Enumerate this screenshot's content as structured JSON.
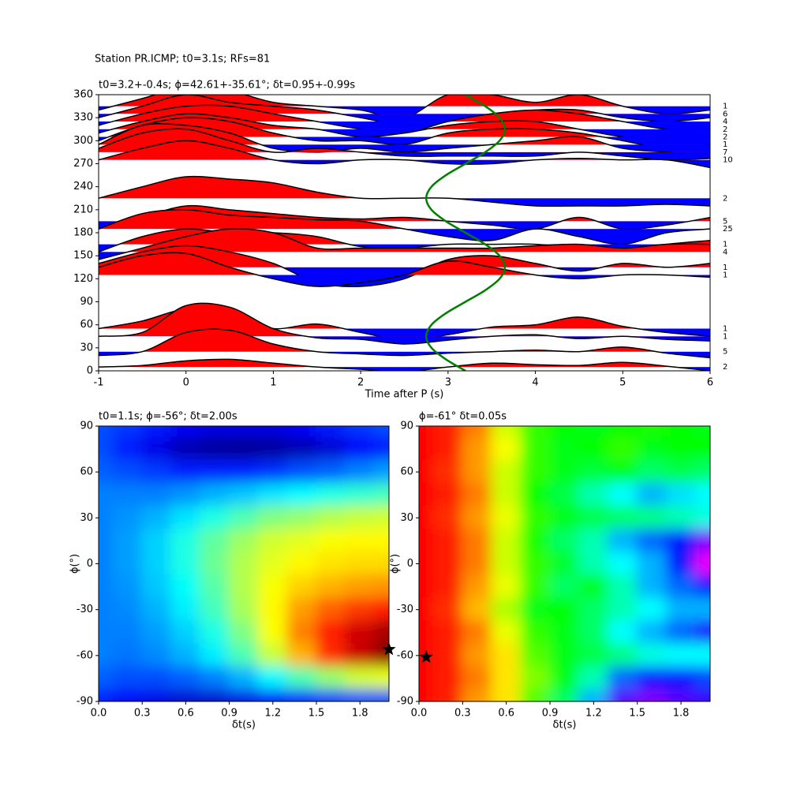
{
  "chart_data": [
    {
      "type": "wiggle",
      "suptitle": "Station PR.ICMP; t0=3.1s; RFs=81",
      "title": "t0=3.2+-0.4s; ϕ=42.61+-35.61°; δt=0.95+-0.99s",
      "xlabel": "Time after P (s)",
      "xlim": [
        -1,
        6
      ],
      "xticks": [
        -1,
        0,
        1,
        2,
        3,
        4,
        5,
        6
      ],
      "ylim": [
        0,
        360
      ],
      "yticks": [
        0,
        30,
        60,
        90,
        120,
        150,
        180,
        210,
        240,
        270,
        300,
        330,
        360
      ],
      "positive_color": "#ff0000",
      "negative_color": "#0000ff",
      "x": [
        -1,
        -0.5,
        0,
        0.5,
        1,
        1.5,
        2,
        2.5,
        3,
        3.5,
        4,
        4.5,
        5,
        5.5,
        6
      ],
      "traces": [
        {
          "baz": 345,
          "count": 1,
          "values": [
            -5,
            10,
            25,
            20,
            5,
            0,
            -5,
            -15,
            15,
            15,
            5,
            15,
            0,
            -10,
            -5
          ]
        },
        {
          "baz": 335,
          "count": 6,
          "values": [
            -5,
            10,
            25,
            15,
            10,
            5,
            -5,
            -15,
            -10,
            0,
            5,
            5,
            -5,
            -10,
            -5
          ]
        },
        {
          "baz": 325,
          "count": 4,
          "values": [
            -5,
            10,
            20,
            20,
            10,
            0,
            -10,
            -15,
            0,
            10,
            15,
            10,
            0,
            -10,
            -10
          ]
        },
        {
          "baz": 315,
          "count": 2,
          "values": [
            -5,
            10,
            20,
            15,
            5,
            0,
            -10,
            -5,
            5,
            10,
            10,
            0,
            -10,
            -15,
            -10
          ]
        },
        {
          "baz": 305,
          "count": 2,
          "values": [
            -5,
            15,
            25,
            20,
            5,
            -5,
            -5,
            -10,
            5,
            10,
            10,
            5,
            -5,
            -15,
            -10
          ]
        },
        {
          "baz": 295,
          "count": 1,
          "values": [
            0,
            25,
            25,
            15,
            -5,
            -10,
            -5,
            -10,
            -5,
            0,
            5,
            10,
            -5,
            -10,
            -15
          ]
        },
        {
          "baz": 285,
          "count": 7,
          "values": [
            5,
            25,
            30,
            15,
            0,
            5,
            0,
            -5,
            -5,
            -5,
            -5,
            0,
            -5,
            -10,
            -8
          ]
        },
        {
          "baz": 275,
          "count": 10,
          "values": [
            0,
            15,
            25,
            15,
            0,
            -5,
            0,
            0,
            -5,
            -5,
            0,
            2,
            0,
            0,
            -10
          ]
        },
        {
          "baz": 225,
          "count": 2,
          "values": [
            0,
            15,
            28,
            25,
            20,
            8,
            0,
            0,
            0,
            -5,
            -10,
            -10,
            -10,
            -8,
            -10
          ]
        },
        {
          "baz": 195,
          "count": 5,
          "values": [
            -10,
            5,
            20,
            15,
            10,
            5,
            3,
            5,
            0,
            -5,
            -10,
            5,
            -10,
            -5,
            5
          ]
        },
        {
          "baz": 185,
          "count": 25,
          "values": [
            0,
            20,
            25,
            18,
            15,
            12,
            10,
            0,
            -10,
            -15,
            0,
            -10,
            -20,
            -5,
            0
          ]
        },
        {
          "baz": 165,
          "count": 1,
          "values": [
            -10,
            10,
            20,
            15,
            15,
            10,
            -3,
            -5,
            0,
            0,
            0,
            -5,
            -8,
            0,
            5
          ]
        },
        {
          "baz": 155,
          "count": 4,
          "values": [
            -10,
            5,
            20,
            30,
            25,
            5,
            5,
            5,
            5,
            5,
            8,
            10,
            5,
            10,
            10
          ]
        },
        {
          "baz": 135,
          "count": 1,
          "values": [
            5,
            20,
            28,
            20,
            5,
            -20,
            -25,
            -15,
            10,
            15,
            5,
            -5,
            5,
            0,
            5
          ]
        },
        {
          "baz": 125,
          "count": 1,
          "values": [
            10,
            25,
            28,
            10,
            -5,
            -15,
            -10,
            0,
            18,
            10,
            0,
            -5,
            0,
            0,
            -3
          ]
        },
        {
          "baz": 55,
          "count": 1,
          "values": [
            0,
            10,
            25,
            15,
            0,
            6,
            -5,
            -15,
            -8,
            2,
            5,
            15,
            3,
            -5,
            -10
          ]
        },
        {
          "baz": 45,
          "count": 1,
          "values": [
            0,
            5,
            40,
            38,
            10,
            -2,
            -4,
            -10,
            -5,
            0,
            2,
            -3,
            0,
            -4,
            -6
          ]
        },
        {
          "baz": 25,
          "count": 5,
          "values": [
            -5,
            0,
            25,
            28,
            10,
            0,
            -3,
            -5,
            -2,
            0,
            2,
            0,
            6,
            -2,
            -8
          ]
        },
        {
          "baz": 5,
          "count": 2,
          "values": [
            0,
            2,
            8,
            10,
            5,
            0,
            -3,
            -6,
            0,
            5,
            3,
            2,
            6,
            1,
            -5
          ]
        }
      ],
      "curve": {
        "color": "#008000",
        "y": [
          0,
          15,
          30,
          45,
          60,
          75,
          90,
          105,
          120,
          135,
          150,
          165,
          180,
          195,
          210,
          225,
          240,
          255,
          270,
          285,
          300,
          315,
          330,
          345,
          360
        ],
        "x": [
          3.2,
          2.975,
          2.81,
          2.75,
          2.81,
          2.975,
          3.2,
          3.425,
          3.59,
          3.65,
          3.59,
          3.425,
          3.2,
          2.975,
          2.81,
          2.75,
          2.81,
          2.975,
          3.2,
          3.425,
          3.59,
          3.65,
          3.59,
          3.425,
          3.2
        ]
      }
    },
    {
      "type": "heatmap",
      "colormap": "jet",
      "title": "t0=1.1s; ϕ=-56°; δt=2.00s",
      "xlabel": "δt(s)",
      "ylabel": "ϕ(°)",
      "xlim": [
        0,
        2
      ],
      "xticks": [
        {
          "value": 0,
          "label": "0.0"
        },
        0.3,
        0.6,
        0.9,
        1.2,
        1.5,
        1.8
      ],
      "ylim": [
        -90,
        90
      ],
      "yticks": [
        -90,
        -60,
        -30,
        0,
        30,
        60,
        90
      ],
      "x": [
        0,
        0.2,
        0.4,
        0.6,
        0.8,
        1,
        1.2,
        1.4,
        1.6,
        1.8,
        2
      ],
      "y": [
        90,
        75,
        60,
        45,
        30,
        15,
        0,
        -15,
        -30,
        -45,
        -60,
        -75,
        -90
      ],
      "values": [
        [
          0.2,
          0.18,
          0.15,
          0.12,
          0.1,
          0.1,
          0.1,
          0.12,
          0.15,
          0.18,
          0.2
        ],
        [
          0.2,
          0.15,
          0.1,
          0.05,
          0.03,
          0.02,
          0.03,
          0.05,
          0.08,
          0.12,
          0.15
        ],
        [
          0.22,
          0.2,
          0.18,
          0.15,
          0.15,
          0.15,
          0.17,
          0.2,
          0.22,
          0.25,
          0.28
        ],
        [
          0.25,
          0.25,
          0.25,
          0.27,
          0.3,
          0.32,
          0.35,
          0.37,
          0.4,
          0.42,
          0.44
        ],
        [
          0.25,
          0.27,
          0.3,
          0.35,
          0.4,
          0.45,
          0.5,
          0.52,
          0.55,
          0.57,
          0.58
        ],
        [
          0.25,
          0.28,
          0.33,
          0.4,
          0.47,
          0.53,
          0.58,
          0.6,
          0.62,
          0.63,
          0.63
        ],
        [
          0.25,
          0.28,
          0.33,
          0.4,
          0.48,
          0.55,
          0.6,
          0.63,
          0.65,
          0.66,
          0.66
        ],
        [
          0.25,
          0.27,
          0.32,
          0.38,
          0.46,
          0.55,
          0.62,
          0.67,
          0.7,
          0.72,
          0.73
        ],
        [
          0.25,
          0.26,
          0.3,
          0.36,
          0.44,
          0.54,
          0.63,
          0.72,
          0.78,
          0.82,
          0.85
        ],
        [
          0.25,
          0.25,
          0.28,
          0.33,
          0.4,
          0.5,
          0.62,
          0.75,
          0.85,
          0.92,
          0.96
        ],
        [
          0.25,
          0.24,
          0.26,
          0.3,
          0.36,
          0.45,
          0.57,
          0.7,
          0.83,
          0.93,
          0.99
        ],
        [
          0.22,
          0.2,
          0.2,
          0.22,
          0.25,
          0.3,
          0.37,
          0.45,
          0.52,
          0.58,
          0.6
        ],
        [
          0.15,
          0.12,
          0.1,
          0.08,
          0.08,
          0.1,
          0.12,
          0.15,
          0.18,
          0.2,
          0.2
        ]
      ],
      "marker": {
        "x": 2.0,
        "y": -56
      }
    },
    {
      "type": "heatmap",
      "colormap": "hsv",
      "title": "ϕ=-61° δt=0.05s",
      "xlabel": "δt(s)",
      "ylabel": "ϕ(°)",
      "xlim": [
        0,
        2
      ],
      "xticks": [
        {
          "value": 0,
          "label": "0.0"
        },
        0.3,
        0.6,
        0.9,
        1.2,
        1.5,
        1.8
      ],
      "ylim": [
        -90,
        90
      ],
      "yticks": [
        -90,
        -60,
        -30,
        0,
        30,
        60,
        90
      ],
      "x": [
        0,
        0.2,
        0.4,
        0.6,
        0.8,
        1,
        1.2,
        1.4,
        1.6,
        1.8,
        2
      ],
      "y": [
        90,
        75,
        60,
        45,
        30,
        15,
        0,
        -15,
        -30,
        -45,
        -60,
        -75,
        -90
      ],
      "values": [
        [
          0,
          0.02,
          0.08,
          0.2,
          0.3,
          0.33,
          0.35,
          0.33,
          0.32,
          0.33,
          0.35
        ],
        [
          0,
          0.02,
          0.1,
          0.17,
          0.3,
          0.35,
          0.33,
          0.3,
          0.35,
          0.33,
          0.33
        ],
        [
          0,
          0.03,
          0.1,
          0.2,
          0.3,
          0.35,
          0.37,
          0.35,
          0.4,
          0.38,
          0.4
        ],
        [
          0,
          0.02,
          0.08,
          0.2,
          0.33,
          0.38,
          0.45,
          0.5,
          0.55,
          0.52,
          0.5
        ],
        [
          0,
          0.03,
          0.1,
          0.18,
          0.3,
          0.35,
          0.38,
          0.4,
          0.42,
          0.45,
          0.48
        ],
        [
          0,
          0.02,
          0.08,
          0.2,
          0.32,
          0.4,
          0.45,
          0.55,
          0.6,
          0.65,
          0.75
        ],
        [
          0,
          0.02,
          0.08,
          0.2,
          0.3,
          0.36,
          0.45,
          0.5,
          0.55,
          0.65,
          0.82
        ],
        [
          0,
          0.02,
          0.1,
          0.18,
          0.3,
          0.4,
          0.35,
          0.45,
          0.55,
          0.6,
          0.65
        ],
        [
          0,
          0.03,
          0.12,
          0.22,
          0.35,
          0.33,
          0.4,
          0.45,
          0.5,
          0.55,
          0.55
        ],
        [
          0,
          0.02,
          0.08,
          0.18,
          0.3,
          0.35,
          0.4,
          0.5,
          0.55,
          0.6,
          0.68
        ],
        [
          0,
          0.02,
          0.1,
          0.15,
          0.28,
          0.35,
          0.38,
          0.42,
          0.48,
          0.5,
          0.5
        ],
        [
          0,
          0.02,
          0.08,
          0.15,
          0.25,
          0.35,
          0.45,
          0.6,
          0.65,
          0.65,
          0.62
        ],
        [
          0,
          0.02,
          0.1,
          0.15,
          0.28,
          0.4,
          0.55,
          0.72,
          0.75,
          0.72,
          0.7
        ]
      ],
      "marker": {
        "x": 0.05,
        "y": -61
      }
    }
  ]
}
